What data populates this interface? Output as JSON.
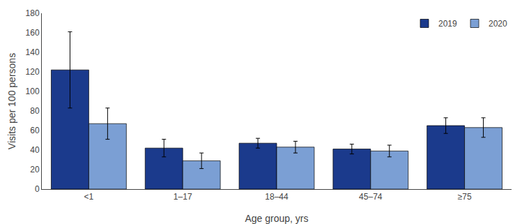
{
  "chart_data": {
    "type": "bar",
    "categories": [
      "<1",
      "1–17",
      "18–44",
      "45–74",
      "≥75"
    ],
    "series": [
      {
        "name": "2019",
        "color": "#1b3a8c",
        "values": [
          122,
          42,
          47,
          41,
          65
        ],
        "errors": [
          39,
          9,
          5,
          5,
          8
        ]
      },
      {
        "name": "2020",
        "color": "#7b9fd4",
        "values": [
          67,
          29,
          43,
          39,
          63
        ],
        "errors": [
          16,
          8,
          6,
          6,
          10
        ]
      }
    ],
    "xlabel": "Age group, yrs",
    "ylabel": "Visits per 100 persons",
    "ylim": [
      0,
      180
    ],
    "yticks": [
      0,
      20,
      40,
      60,
      80,
      100,
      120,
      140,
      160,
      180
    ],
    "grid": false,
    "legend": "upper right"
  }
}
